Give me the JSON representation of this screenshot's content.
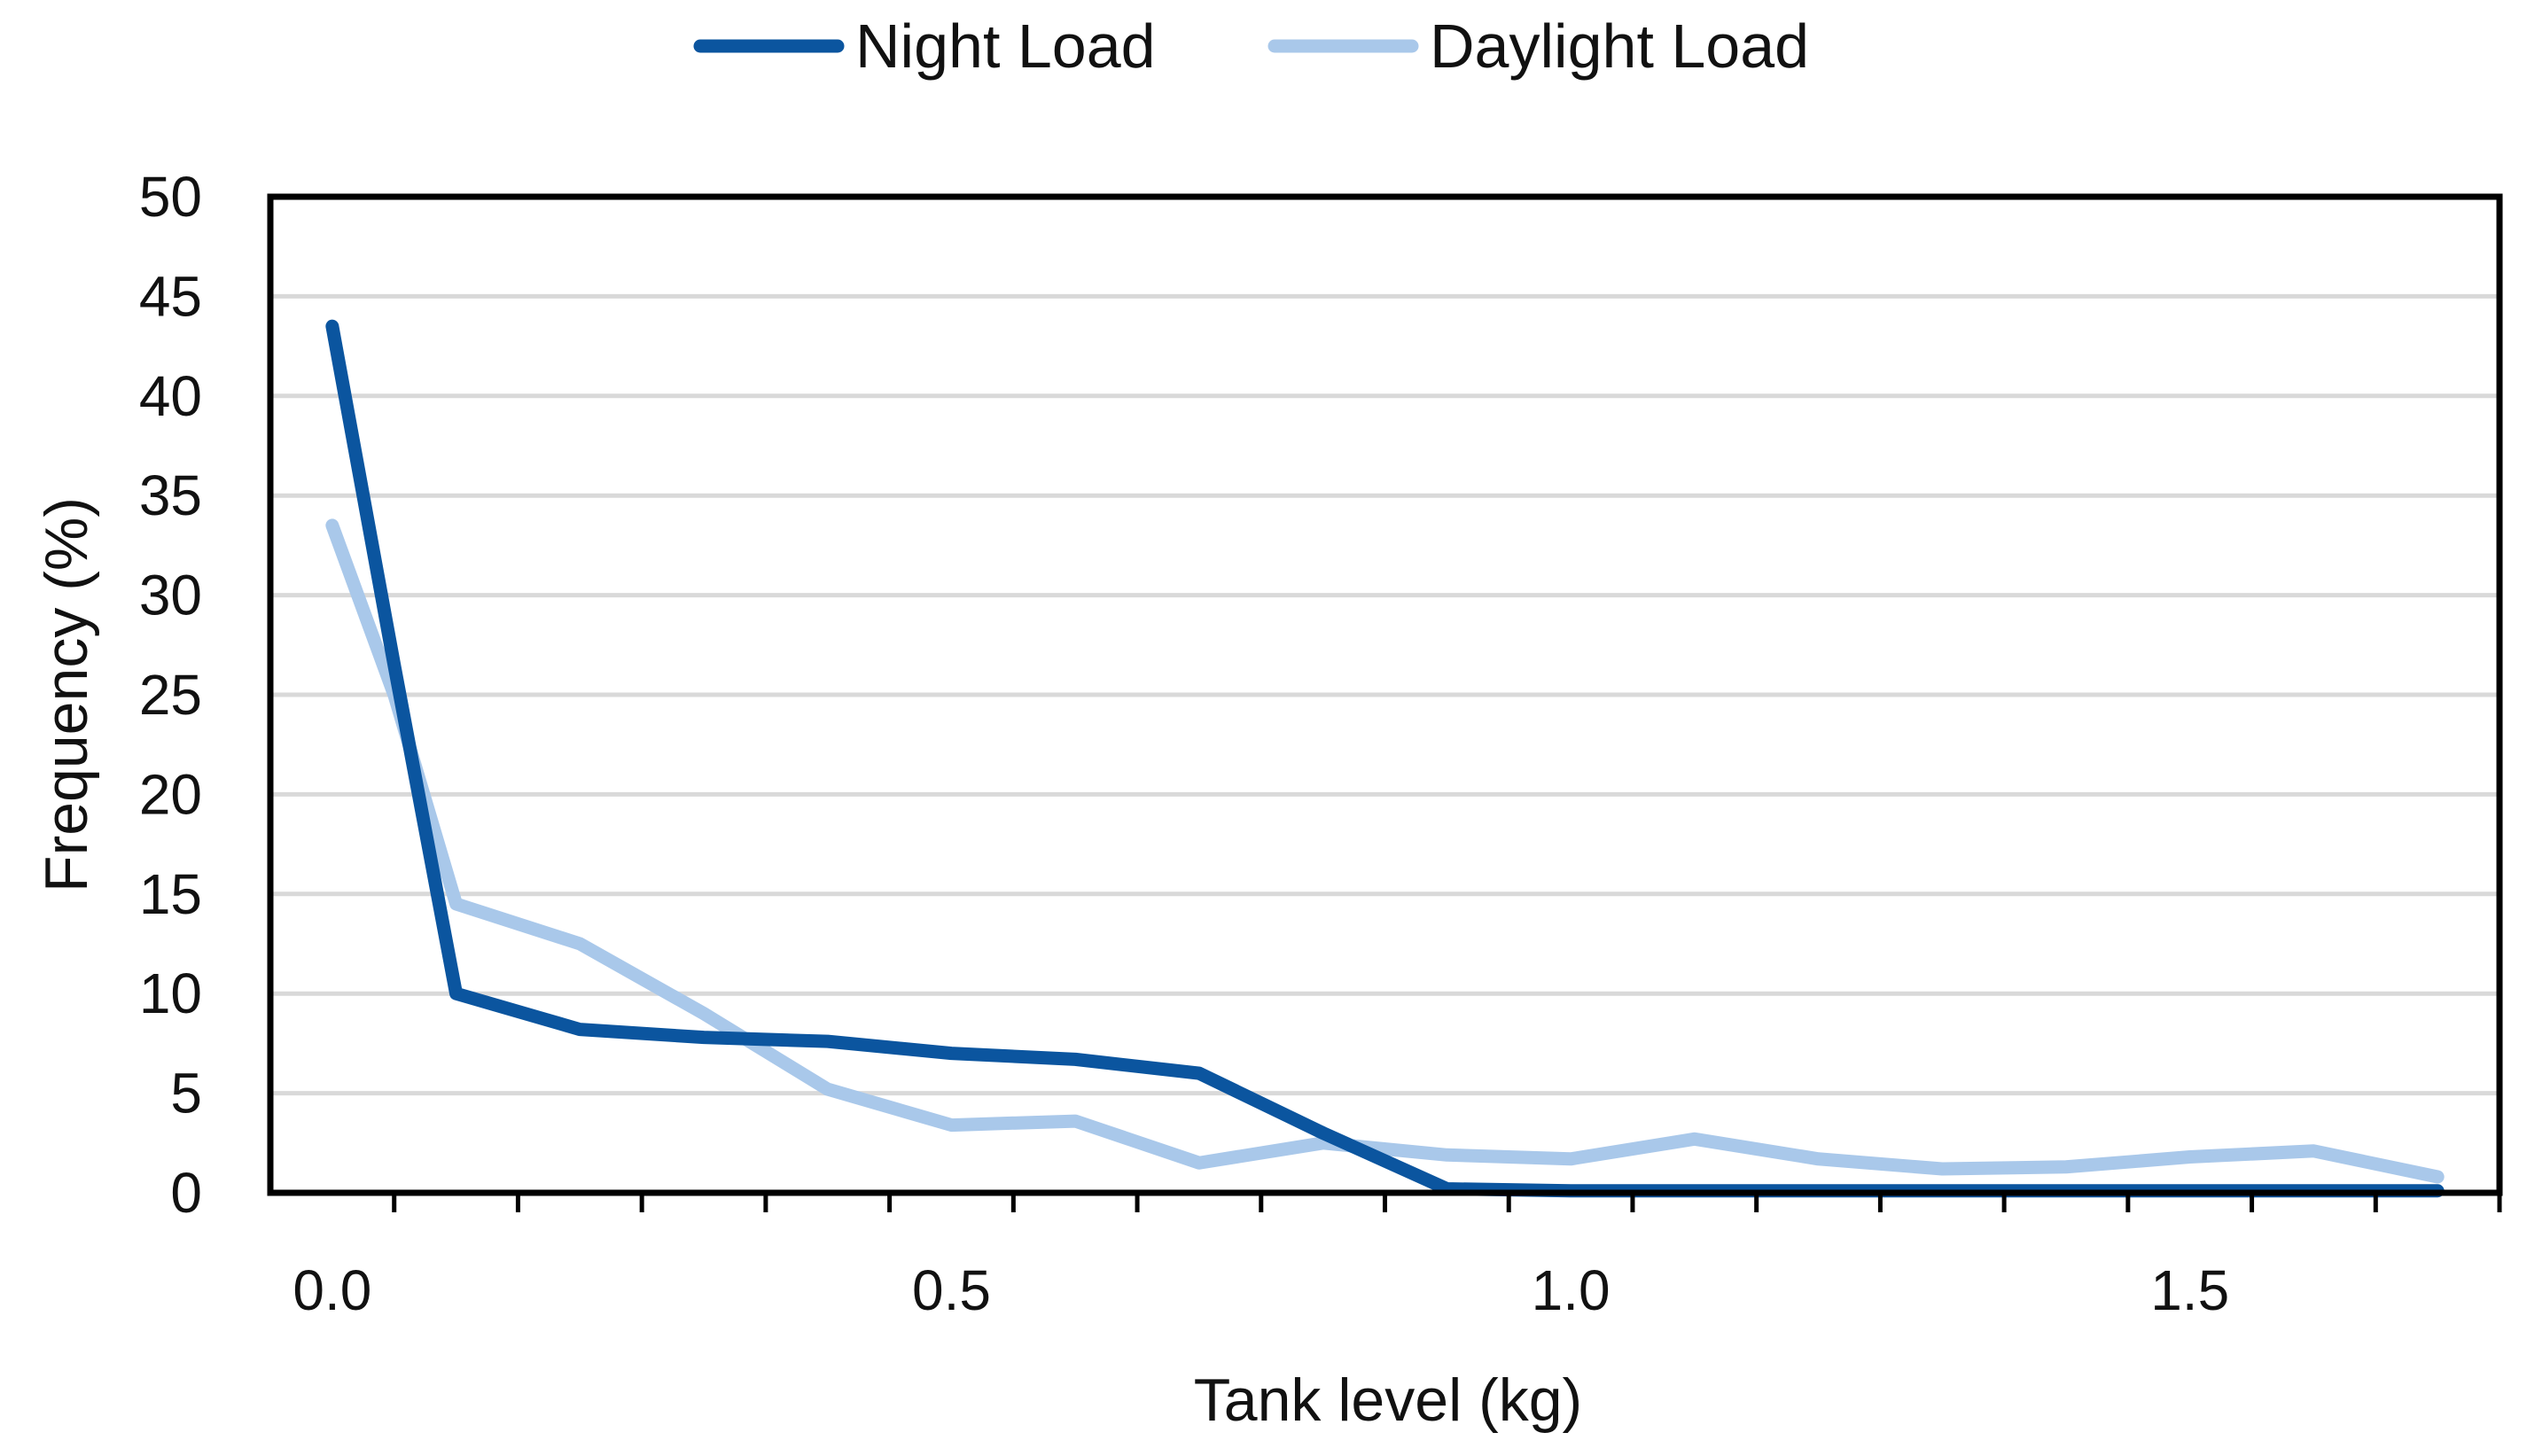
{
  "chart_data": {
    "type": "line",
    "title": "",
    "xlabel": "Tank level (kg)",
    "ylabel": "Frequency (%)",
    "xlim": [
      -0.05,
      1.75
    ],
    "ylim": [
      0,
      50
    ],
    "grid": true,
    "legend_position": "top-center",
    "x": [
      0.0,
      0.05,
      0.1,
      0.2,
      0.3,
      0.4,
      0.5,
      0.6,
      0.7,
      0.8,
      0.9,
      1.0,
      1.1,
      1.2,
      1.3,
      1.4,
      1.5,
      1.6,
      1.7
    ],
    "series": [
      {
        "name": "Night Load",
        "color": "#0b559f",
        "values": [
          43.5,
          26.5,
          10.0,
          8.2,
          7.8,
          7.6,
          7.0,
          6.7,
          6.0,
          3.0,
          0.2,
          0.1,
          0.1,
          0.1,
          0.1,
          0.1,
          0.1,
          0.1,
          0.1
        ]
      },
      {
        "name": "Daylight Load",
        "color": "#a9c8ea",
        "values": [
          33.5,
          25.0,
          14.5,
          12.5,
          9.0,
          5.2,
          3.4,
          3.6,
          1.5,
          2.5,
          1.9,
          1.7,
          2.7,
          1.7,
          1.2,
          1.3,
          1.8,
          2.1,
          0.8
        ]
      }
    ],
    "y_ticks": [
      "0",
      "5",
      "10",
      "15",
      "20",
      "25",
      "30",
      "35",
      "40",
      "45",
      "50"
    ],
    "x_ticks": [
      "0.0",
      "0.5",
      "1.0",
      "1.5"
    ]
  }
}
